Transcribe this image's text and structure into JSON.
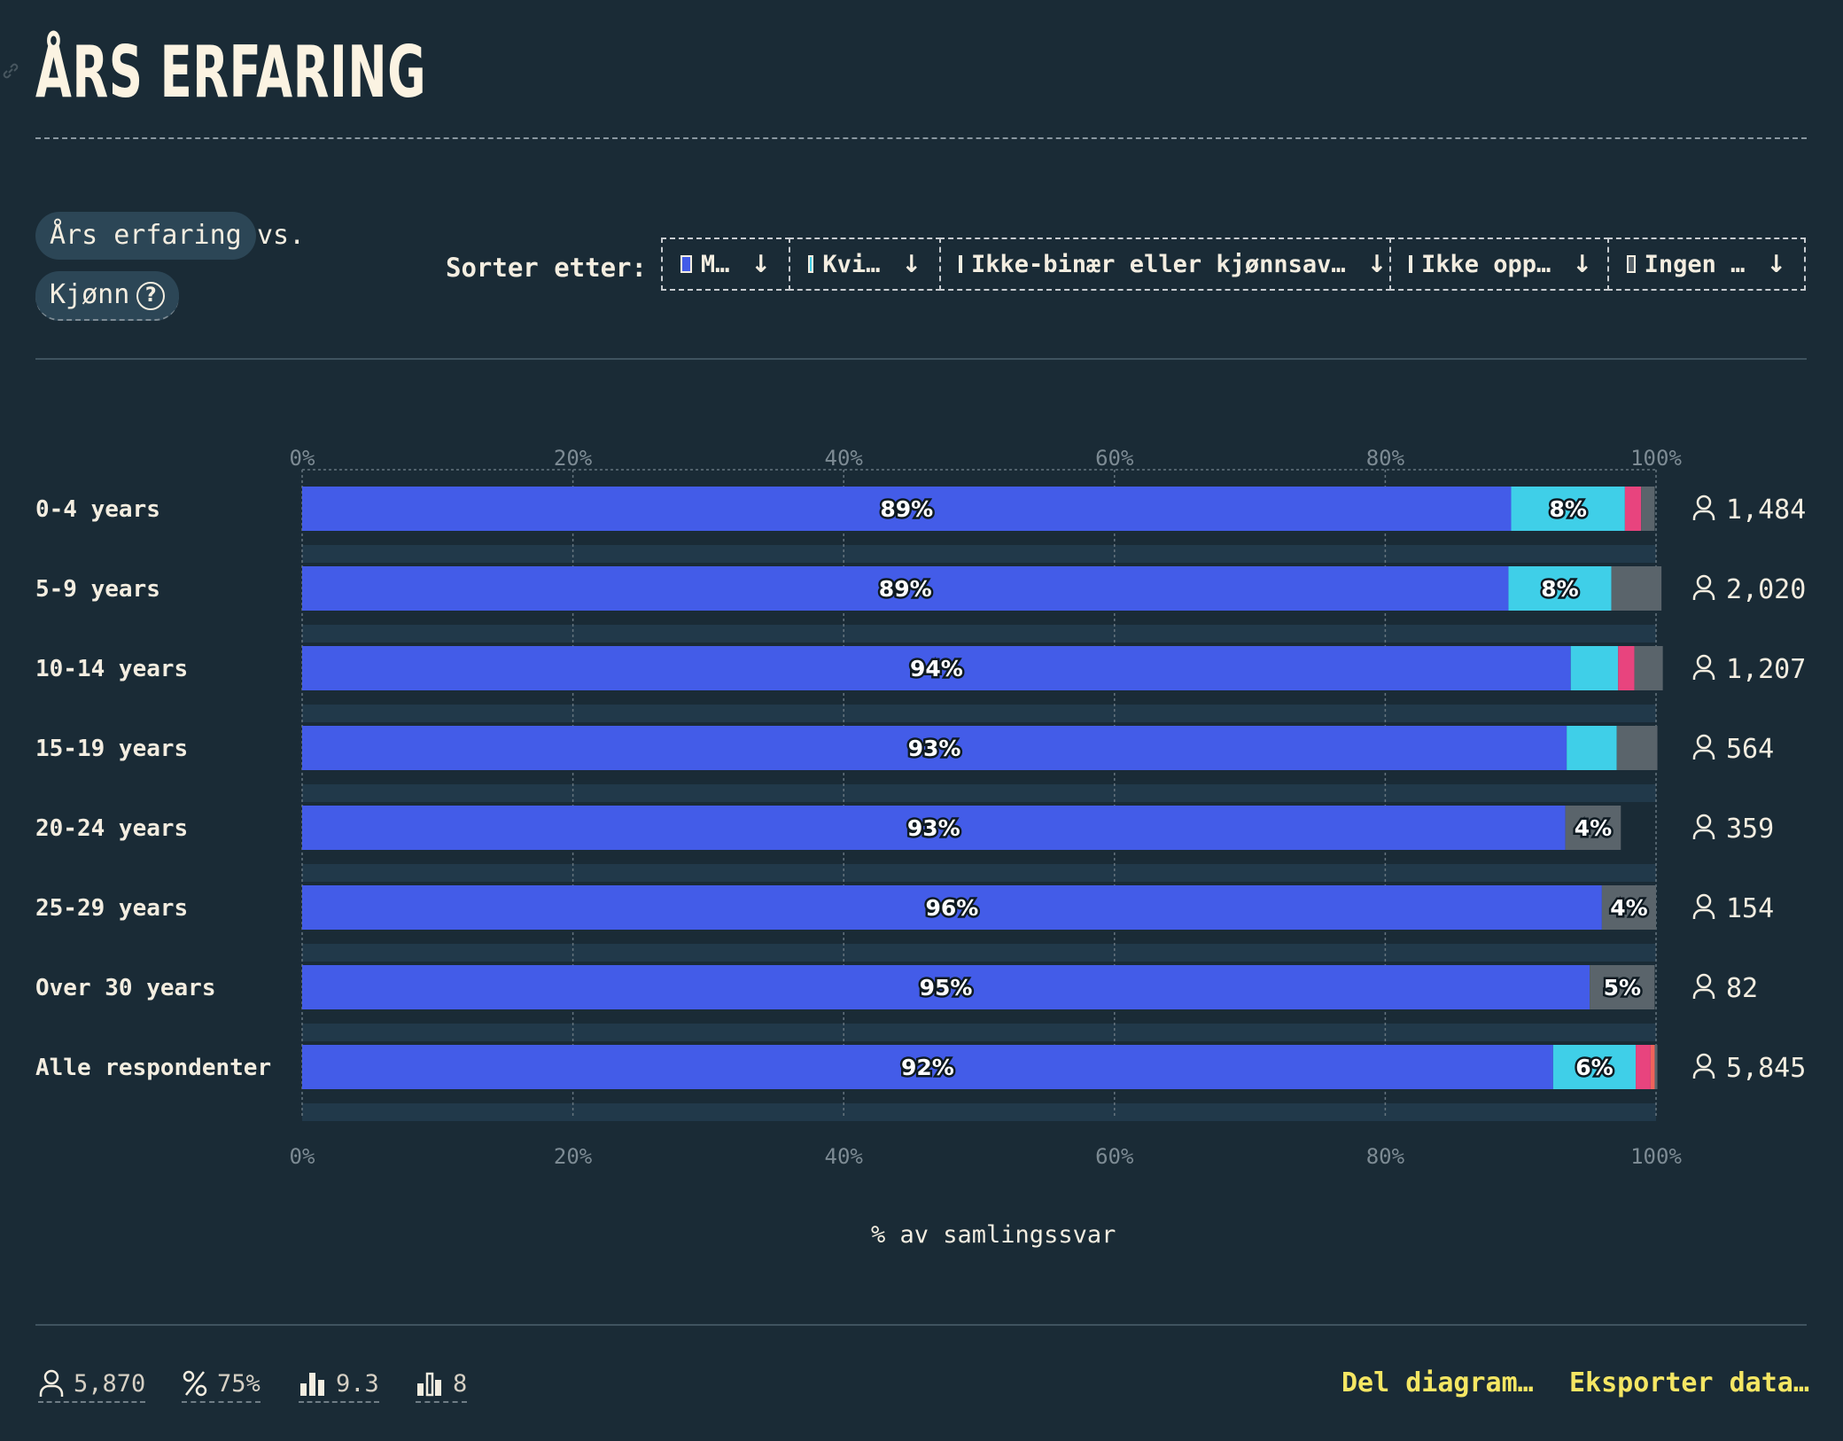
{
  "title": "ÅRS ERFARING",
  "selectors": {
    "x": "Års erfaring",
    "vs": "vs.",
    "y": "Kjønn",
    "help": "?"
  },
  "sort": {
    "label": "Sorter etter:",
    "options": [
      {
        "label": "M…",
        "color": "#435ce8"
      },
      {
        "label": "Kvi…",
        "color": "#3fcfe8"
      },
      {
        "label": "Ikke-binær eller kjønnsav…",
        "color": "#e8447e"
      },
      {
        "label": "Ikke opp…",
        "color": "#f0635b"
      },
      {
        "label": "Ingen …",
        "color": "#5a646b"
      }
    ],
    "arrow": "↓"
  },
  "chart_data": {
    "type": "bar",
    "orientation": "horizontal",
    "stacked": true,
    "categories": [
      "0-4 years",
      "5-9 years",
      "10-14 years",
      "15-19 years",
      "20-24 years",
      "25-29 years",
      "Over 30 years",
      "Alle respondenter"
    ],
    "series": [
      {
        "name": "M…",
        "color": "#435ce8",
        "values": [
          89.3,
          89.1,
          93.7,
          93.4,
          93.3,
          96.0,
          95.1,
          92.4
        ]
      },
      {
        "name": "Kvi…",
        "color": "#3fcfe8",
        "values": [
          8.4,
          7.6,
          3.5,
          3.7,
          0,
          0,
          0,
          6.1
        ]
      },
      {
        "name": "Ikke-binær eller kjønnsav…",
        "color": "#e8447e",
        "values": [
          1.2,
          0,
          1.2,
          0,
          0,
          0,
          0,
          1.1
        ]
      },
      {
        "name": "Ikke opp…",
        "color": "#f0635b",
        "values": [
          0,
          0,
          0,
          0,
          0,
          0,
          0,
          0.3
        ]
      },
      {
        "name": "Ingen …",
        "color": "#5a646b",
        "values": [
          1.0,
          3.7,
          2.1,
          3.0,
          4.1,
          4.0,
          4.8,
          0.2
        ]
      }
    ],
    "labels": [
      [
        "89%",
        "8%",
        "",
        "",
        ""
      ],
      [
        "89%",
        "8%",
        "",
        "",
        ""
      ],
      [
        "94%",
        "",
        "",
        "",
        ""
      ],
      [
        "93%",
        "",
        "",
        "",
        ""
      ],
      [
        "93%",
        "",
        "",
        "",
        "4%"
      ],
      [
        "96%",
        "",
        "",
        "",
        "4%"
      ],
      [
        "95%",
        "",
        "",
        "",
        "5%"
      ],
      [
        "92%",
        "6%",
        "",
        "",
        ""
      ]
    ],
    "counts": [
      "1,484",
      "2,020",
      "1,207",
      "564",
      "359",
      "154",
      "82",
      "5,845"
    ],
    "xticks": [
      "0%",
      "20%",
      "40%",
      "60%",
      "80%",
      "100%"
    ],
    "xlim": [
      0,
      100
    ],
    "xlabel": "% av samlingssvar",
    "grid": true
  },
  "stats": [
    {
      "icon": "person-icon",
      "value": "5,870"
    },
    {
      "icon": "percent-icon",
      "value": "75%"
    },
    {
      "icon": "bar-chart-icon",
      "value": "9.3"
    },
    {
      "icon": "bar-outline-icon",
      "value": "8"
    }
  ],
  "actions": {
    "share": "Del diagram…",
    "export": "Eksporter data…"
  }
}
